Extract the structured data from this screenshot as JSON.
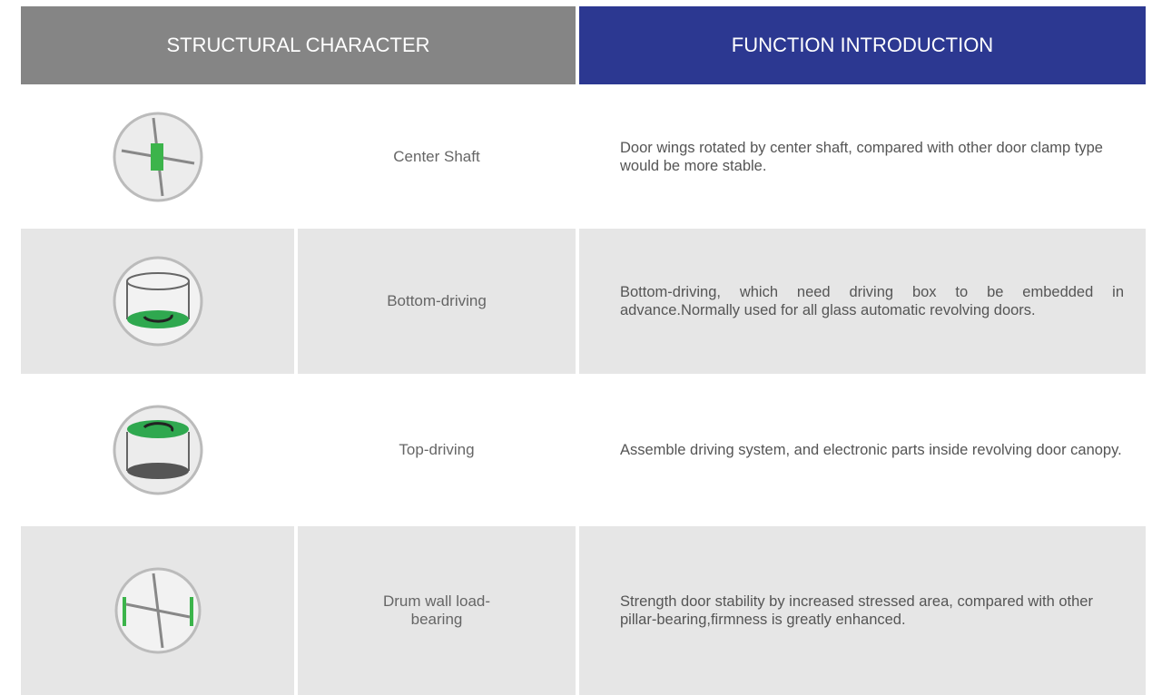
{
  "header": {
    "left": "STRUCTURAL CHARACTER",
    "right": "FUNCTION INTRODUCTION"
  },
  "table": {
    "rows": [
      {
        "name": "Center Shaft",
        "description": "Door wings rotated by center shaft, compared with other door clamp type would be more stable."
      },
      {
        "name": "Bottom-driving",
        "description": "Bottom-driving, which need driving box to be embedded in advance.Normally used for all glass automatic revolving doors."
      },
      {
        "name": "Top-driving",
        "description": "Assemble driving system, and electronic parts inside revolving door canopy."
      },
      {
        "name": "Drum wall load-bearing",
        "description": "Strength door stability by increased stressed area, compared with other pillar-bearing,firmness is greatly enhanced."
      }
    ]
  }
}
